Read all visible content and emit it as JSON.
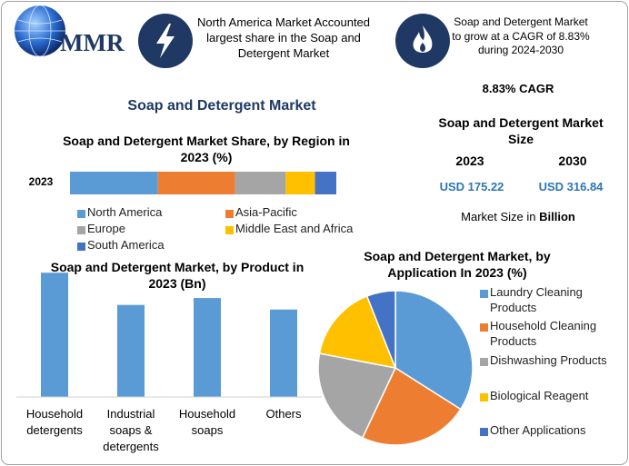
{
  "logo": "MMR",
  "header": {
    "box1": "North America Market Accounted largest share in the Soap and Detergent Market",
    "box2": "Soap and Detergent Market to grow at a CAGR of 8.83% during 2024-2030"
  },
  "title": "Soap and Detergent Market",
  "market_size": {
    "cagr": "8.83% CAGR",
    "title": "Soap and Detergent Market Size",
    "years": [
      "2023",
      "2030"
    ],
    "values": [
      "USD 175.22",
      "USD 316.84"
    ],
    "note": "Market Size in",
    "note_unit": "Billion"
  },
  "chart_data": [
    {
      "type": "stacked_bar",
      "title": "Soap and Detergent Market Share, by Region in 2023 (%)",
      "categories": [
        "2023"
      ],
      "xlim": [
        0,
        100
      ],
      "series": [
        {
          "name": "North America",
          "color": "#5b9bd5",
          "values": [
            33
          ]
        },
        {
          "name": "Asia-Pacific",
          "color": "#ed7d31",
          "values": [
            29
          ]
        },
        {
          "name": "Europe",
          "color": "#a5a5a5",
          "values": [
            19
          ]
        },
        {
          "name": "Middle East and Africa",
          "color": "#ffc000",
          "values": [
            11
          ]
        },
        {
          "name": "South America",
          "color": "#4472c4",
          "values": [
            8
          ]
        }
      ]
    },
    {
      "type": "bar",
      "title": "Soap and Detergent Market, by Product in 2023 (Bn)",
      "categories": [
        "Household detergents",
        "Industrial soaps & detergents",
        "Household soaps",
        "Others"
      ],
      "values": [
        54,
        40,
        43,
        38
      ],
      "color": "#5b9bd5",
      "ylim": [
        0,
        60
      ]
    },
    {
      "type": "pie",
      "title": "Soap and Detergent Market, by Application In 2023 (%)",
      "categories": [
        "Laundry Cleaning Products",
        "Household Cleaning Products",
        "Dishwashing Products",
        "Biological Reagent",
        "Other Applications"
      ],
      "values": [
        34,
        23,
        21,
        16,
        6
      ],
      "colors": [
        "#5b9bd5",
        "#ed7d31",
        "#a5a5a5",
        "#ffc000",
        "#4472c4"
      ]
    }
  ]
}
